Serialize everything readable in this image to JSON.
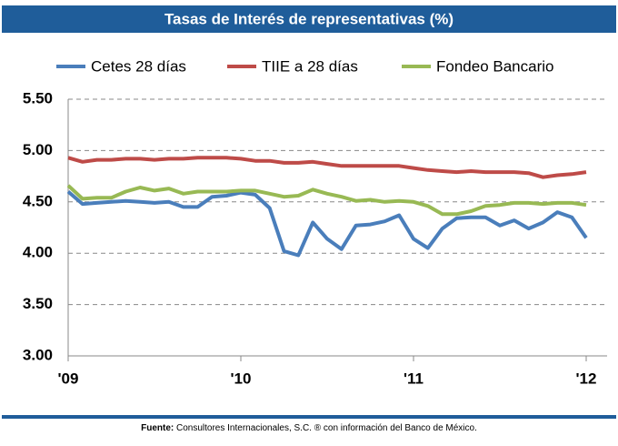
{
  "chart_data": {
    "type": "line",
    "title": "Tasas de Interés de representativas (%)",
    "categories": [
      "'09",
      null,
      null,
      null,
      null,
      null,
      null,
      null,
      null,
      null,
      null,
      null,
      "'10",
      null,
      null,
      null,
      null,
      null,
      null,
      null,
      null,
      null,
      null,
      null,
      "'11",
      null,
      null,
      null,
      null,
      null,
      null,
      null,
      null,
      null,
      null,
      null,
      "'12"
    ],
    "series": [
      {
        "name": "Cetes 28 días",
        "color": "#4a7ebb",
        "values": [
          4.6,
          4.48,
          4.49,
          4.5,
          4.51,
          4.5,
          4.49,
          4.5,
          4.45,
          4.45,
          4.55,
          4.56,
          4.59,
          4.57,
          4.44,
          4.02,
          3.98,
          4.3,
          4.14,
          4.04,
          4.27,
          4.28,
          4.31,
          4.37,
          4.14,
          4.05,
          4.24,
          4.34,
          4.35,
          4.35,
          4.27,
          4.32,
          4.24,
          4.3,
          4.4,
          4.35,
          4.15
        ]
      },
      {
        "name": "TIIE a 28 días",
        "color": "#be4b48",
        "values": [
          4.93,
          4.89,
          4.91,
          4.91,
          4.92,
          4.92,
          4.91,
          4.92,
          4.92,
          4.93,
          4.93,
          4.93,
          4.92,
          4.9,
          4.9,
          4.88,
          4.88,
          4.89,
          4.87,
          4.85,
          4.85,
          4.85,
          4.85,
          4.85,
          4.83,
          4.81,
          4.8,
          4.79,
          4.8,
          4.79,
          4.79,
          4.79,
          4.78,
          4.74,
          4.76,
          4.77,
          4.79
        ]
      },
      {
        "name": "Fondeo Bancario",
        "color": "#98b954",
        "values": [
          4.66,
          4.53,
          4.54,
          4.54,
          4.6,
          4.64,
          4.61,
          4.63,
          4.58,
          4.6,
          4.6,
          4.6,
          4.61,
          4.61,
          4.58,
          4.55,
          4.56,
          4.62,
          4.58,
          4.55,
          4.51,
          4.52,
          4.5,
          4.51,
          4.5,
          4.46,
          4.38,
          4.38,
          4.41,
          4.46,
          4.47,
          4.49,
          4.49,
          4.48,
          4.49,
          4.49,
          4.47
        ]
      }
    ],
    "ylim": [
      3,
      5.5
    ],
    "yticks": [
      {
        "value": 3,
        "label": "3.00"
      },
      {
        "value": 3.5,
        "label": "3.50"
      },
      {
        "value": 4,
        "label": "4.00"
      },
      {
        "value": 4.5,
        "label": "4.50"
      },
      {
        "value": 5,
        "label": "5.00"
      },
      {
        "value": 5.5,
        "label": "5.50"
      }
    ],
    "grid": true,
    "footer": {
      "label": "Fuente:",
      "text": "Consultores Internacionales, S.C. ® con información del Banco de México."
    }
  }
}
